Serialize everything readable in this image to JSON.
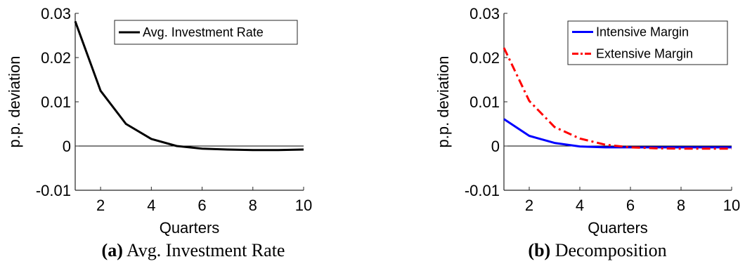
{
  "captions": [
    {
      "label": "(a)",
      "text": "Avg. Investment Rate"
    },
    {
      "label": "(b)",
      "text": "Decomposition"
    }
  ],
  "chart_data": [
    {
      "type": "line",
      "title": "",
      "xlabel": "Quarters",
      "ylabel": "p.p. deviation",
      "xlim": [
        1,
        10
      ],
      "ylim": [
        -0.01,
        0.03
      ],
      "xticks": [
        2,
        4,
        6,
        8,
        10
      ],
      "xtick_labels": [
        "2",
        "4",
        "6",
        "8",
        "10"
      ],
      "yticks": [
        -0.01,
        0,
        0.01,
        0.02,
        0.03
      ],
      "ytick_labels": [
        "-0.01",
        "0",
        "0.01",
        "0.02",
        "0.03"
      ],
      "zero_line": true,
      "grid": false,
      "legend_position": "top-right",
      "x": [
        1,
        2,
        3,
        4,
        5,
        6,
        7,
        8,
        9,
        10
      ],
      "series": [
        {
          "name": "Avg. Investment Rate",
          "color": "#000000",
          "style": "solid",
          "values": [
            0.0282,
            0.0125,
            0.005,
            0.0016,
            0.0,
            -0.0006,
            -0.0008,
            -0.0009,
            -0.0009,
            -0.0008
          ]
        }
      ]
    },
    {
      "type": "line",
      "title": "",
      "xlabel": "Quarters",
      "ylabel": "p.p. deviation",
      "xlim": [
        1,
        10
      ],
      "ylim": [
        -0.01,
        0.03
      ],
      "xticks": [
        2,
        4,
        6,
        8,
        10
      ],
      "xtick_labels": [
        "2",
        "4",
        "6",
        "8",
        "10"
      ],
      "yticks": [
        -0.01,
        0,
        0.01,
        0.02,
        0.03
      ],
      "ytick_labels": [
        "-0.01",
        "0",
        "0.01",
        "0.02",
        "0.03"
      ],
      "zero_line": true,
      "grid": false,
      "legend_position": "top-right",
      "x": [
        1,
        2,
        3,
        4,
        5,
        6,
        7,
        8,
        9,
        10
      ],
      "series": [
        {
          "name": "Intensive Margin",
          "color": "#0000ff",
          "style": "solid",
          "values": [
            0.0061,
            0.0023,
            0.0007,
            -0.0001,
            -0.0003,
            -0.0003,
            -0.0003,
            -0.0003,
            -0.0003,
            -0.0003
          ]
        },
        {
          "name": "Extensive Margin",
          "color": "#ff0000",
          "style": "dashdot",
          "values": [
            0.0222,
            0.0102,
            0.0043,
            0.0017,
            0.0003,
            -0.0003,
            -0.0005,
            -0.0006,
            -0.0006,
            -0.0006
          ]
        }
      ]
    }
  ]
}
